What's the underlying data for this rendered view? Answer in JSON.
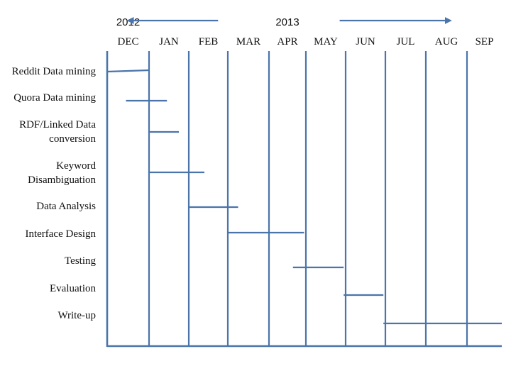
{
  "chart_data": {
    "type": "gantt",
    "years": [
      {
        "label": "2012",
        "anchor_month": "DEC"
      },
      {
        "label": "2013",
        "anchor_month": "APR"
      }
    ],
    "year_arrows": [
      {
        "direction": "left",
        "from_month": 2.75,
        "to_month": 0.5
      },
      {
        "direction": "right",
        "from_month": 5.85,
        "to_month": 8.6
      }
    ],
    "months": [
      "DEC",
      "JAN",
      "FEB",
      "MAR",
      "APR",
      "MAY",
      "JUN",
      "JUL",
      "AUG",
      "SEP"
    ],
    "month_unit_note": "",
    "tasks": [
      {
        "label": [
          "Reddit Data mining"
        ],
        "start": 0.0,
        "end": 1.0
      },
      {
        "label": [
          "Quora Data mining"
        ],
        "start": 0.45,
        "end": 1.45
      },
      {
        "label": [
          "RDF/Linked Data",
          "conversion"
        ],
        "start": 1.0,
        "end": 1.75
      },
      {
        "label": [
          "Keyword",
          "Disambiguation"
        ],
        "start": 1.0,
        "end": 2.4
      },
      {
        "label": [
          "Data Analysis"
        ],
        "start": 2.0,
        "end": 3.25
      },
      {
        "label": [
          "Interface Design"
        ],
        "start": 3.0,
        "end": 4.95
      },
      {
        "label": [
          "Testing"
        ],
        "start": 4.65,
        "end": 5.95
      },
      {
        "label": [
          "Evaluation"
        ],
        "start": 5.95,
        "end": 6.95
      },
      {
        "label": [
          "Write-up"
        ],
        "start": 6.95,
        "end": 10.0
      }
    ],
    "colors": {
      "line": "#4a74aa",
      "text": "#111111"
    }
  }
}
